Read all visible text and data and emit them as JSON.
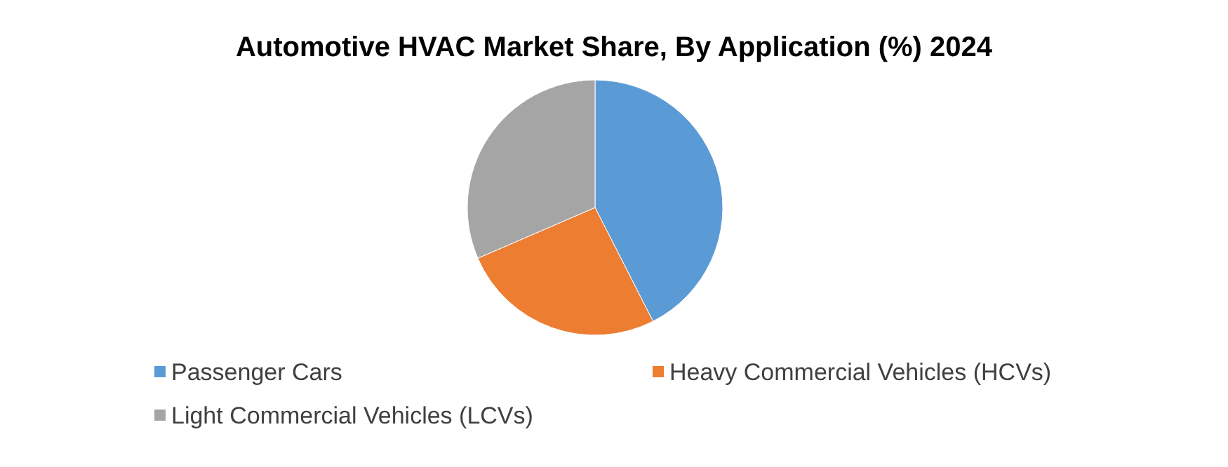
{
  "chart_data": {
    "type": "pie",
    "title": "Automotive HVAC Market  Share, By Application (%) 2024",
    "categories": [
      "Passenger Cars",
      "Heavy Commercial Vehicles (HCVs)",
      "Light Commercial Vehicles (LCVs)"
    ],
    "values": [
      42.5,
      26,
      31.5
    ],
    "colors": [
      "#5b9bd5",
      "#ed7d31",
      "#a5a5a5"
    ],
    "legend": "bottom"
  }
}
